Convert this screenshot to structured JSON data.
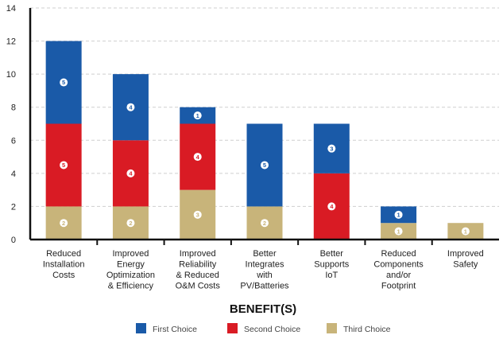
{
  "chart_data": {
    "type": "bar",
    "stacked": true,
    "xlabel": "BENEFIT(S)",
    "ylabel": "",
    "ylim": [
      0,
      14
    ],
    "yticks": [
      0,
      2,
      4,
      6,
      8,
      10,
      12,
      14
    ],
    "grid": true,
    "legend_position": "bottom",
    "categories": [
      [
        "Reduced",
        "Installation",
        "Costs"
      ],
      [
        "Improved",
        "Energy",
        "Optimization",
        "& Efficiency"
      ],
      [
        "Improved",
        "Reliability",
        "& Reduced",
        "O&M Costs"
      ],
      [
        "Better",
        "Integrates",
        "with",
        "PV/Batteries"
      ],
      [
        "Better",
        "Supports",
        "IoT"
      ],
      [
        "Reduced",
        "Components",
        "and/or",
        "Footprint"
      ],
      [
        "Improved",
        "Safety"
      ]
    ],
    "series": [
      {
        "name": "Third Choice",
        "color": "#c8b47a",
        "values": [
          2,
          2,
          3,
          2,
          0,
          1,
          1
        ],
        "rank_labels": [
          "2",
          "2",
          "3",
          "2",
          "",
          "1",
          "1"
        ]
      },
      {
        "name": "Second Choice",
        "color": "#d91b24",
        "values": [
          5,
          4,
          4,
          0,
          4,
          0,
          0
        ],
        "rank_labels": [
          "5",
          "4",
          "4",
          "",
          "4",
          "",
          ""
        ]
      },
      {
        "name": "First Choice",
        "color": "#1a5aa8",
        "values": [
          5,
          4,
          1,
          5,
          3,
          1,
          0
        ],
        "rank_labels": [
          "5",
          "4",
          "1",
          "5",
          "3",
          "1",
          ""
        ]
      }
    ],
    "legend": [
      {
        "name": "First Choice",
        "color": "#1a5aa8"
      },
      {
        "name": "Second Choice",
        "color": "#d91b24"
      },
      {
        "name": "Third Choice",
        "color": "#c8b47a"
      }
    ]
  }
}
